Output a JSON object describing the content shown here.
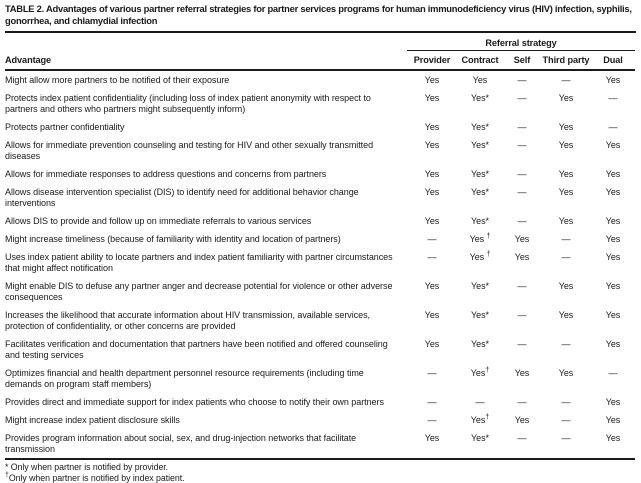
{
  "title": "TABLE 2. Advantages of various partner referral strategies for partner services programs for human immunodeficiency virus (HIV) infection, syphilis, gonorrhea, and chlamydial infection",
  "table": {
    "group_header": "Referral strategy",
    "advantage_header": "Advantage",
    "strategy_columns": [
      "Provider",
      "Contract",
      "Self",
      "Third party",
      "Dual"
    ],
    "rows": [
      {
        "advantage": "Might allow more partners to be notified of their exposure",
        "values": [
          "Yes",
          "Yes",
          "—",
          "—",
          "Yes"
        ]
      },
      {
        "advantage": "Protects index patient confidentiality (including loss of index patient anonymity with respect to partners and others who partners might subsequently inform)",
        "values": [
          "Yes",
          "Yes*",
          "—",
          "Yes",
          "—"
        ]
      },
      {
        "advantage": "Protects partner confidentiality",
        "values": [
          "Yes",
          "Yes*",
          "—",
          "Yes",
          "—"
        ]
      },
      {
        "advantage": "Allows for immediate prevention counseling and testing for HIV and other sexually transmitted diseases",
        "values": [
          "Yes",
          "Yes*",
          "—",
          "Yes",
          "Yes"
        ]
      },
      {
        "advantage": "Allows for immediate responses to address questions and concerns from partners",
        "values": [
          "Yes",
          "Yes*",
          "—",
          "Yes",
          "Yes"
        ]
      },
      {
        "advantage": "Allows disease intervention specialist (DIS) to identify need for additional behavior change interventions",
        "values": [
          "Yes",
          "Yes*",
          "—",
          "Yes",
          "Yes"
        ]
      },
      {
        "advantage": "Allows DIS to provide and follow up on immediate referrals to various services",
        "values": [
          "Yes",
          "Yes*",
          "—",
          "Yes",
          "Yes"
        ]
      },
      {
        "advantage": "Might increase timeliness (because of familiarity with identity and location of partners)",
        "values": [
          "—",
          "Yes †",
          "Yes",
          "—",
          "Yes"
        ]
      },
      {
        "advantage": "Uses index patient ability to locate partners and index patient familiarity with partner circumstances that might affect notification",
        "values": [
          "—",
          "Yes †",
          "Yes",
          "—",
          "Yes"
        ]
      },
      {
        "advantage": "Might enable DIS to defuse any partner anger and decrease potential for violence or other adverse consequences",
        "values": [
          "Yes",
          "Yes*",
          "—",
          "Yes",
          "Yes"
        ]
      },
      {
        "advantage": "Increases the likelihood that accurate information about HIV transmission, available services, protection of confidentiality, or other concerns are provided",
        "values": [
          "Yes",
          "Yes*",
          "—",
          "Yes",
          "Yes"
        ]
      },
      {
        "advantage": "Facilitates verification and documentation that partners have been notified and offered counseling and testing services",
        "values": [
          "Yes",
          "Yes*",
          "—",
          "—",
          "Yes"
        ]
      },
      {
        "advantage": "Optimizes financial and health department personnel resource requirements (including time demands on program staff members)",
        "values": [
          "—",
          "Yes†",
          "Yes",
          "Yes",
          "—"
        ]
      },
      {
        "advantage": "Provides direct and immediate support for index patients who choose to notify their own partners",
        "values": [
          "—",
          "—",
          "—",
          "—",
          "Yes"
        ]
      },
      {
        "advantage": "Might increase index patient disclosure skills",
        "values": [
          "—",
          "Yes†",
          "Yes",
          "—",
          "Yes"
        ]
      },
      {
        "advantage": "Provides program information about social, sex, and drug-injection networks that facilitate transmission",
        "values": [
          "Yes",
          "Yes*",
          "—",
          "—",
          "Yes"
        ]
      }
    ]
  },
  "footnotes": [
    {
      "marker": "*",
      "text": " Only when partner is notified by provider."
    },
    {
      "marker": "†",
      "text": "Only when partner is notified by index patient."
    }
  ],
  "colors": {
    "text": "#1a1a1a",
    "background": "#ffffff",
    "rule": "#1a1a1a"
  }
}
